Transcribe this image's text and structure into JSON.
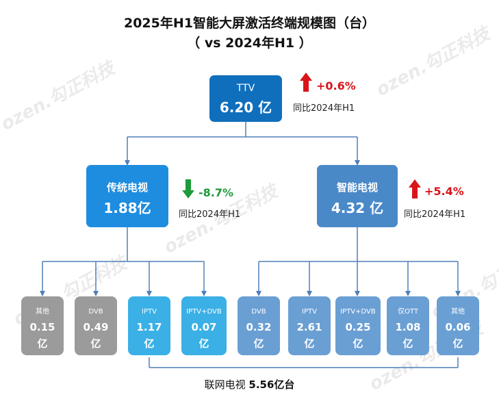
{
  "title_line1": "2025年H1智能大屏激活终端规模图（台）",
  "title_line2": "（ vs 2024年H1 ）",
  "root": {
    "name": "TTV",
    "value": "6.20 亿",
    "growth": "+0.6%",
    "compare": "同比2024年H1"
  },
  "traditional": {
    "name": "传统电视",
    "value": "1.88亿",
    "growth": "-8.7%",
    "compare": "同比2024年H1"
  },
  "smart": {
    "name": "智能电视",
    "value": "4.32 亿",
    "growth": "+5.4%",
    "compare": "同比2024年H1"
  },
  "leaves": [
    {
      "name": "其他",
      "value": "0.15",
      "unit": "亿"
    },
    {
      "name": "DVB",
      "value": "0.49",
      "unit": "亿"
    },
    {
      "name": "IPTV",
      "value": "1.17",
      "unit": "亿"
    },
    {
      "name": "IPTV+DVB",
      "value": "0.07",
      "unit": "亿"
    },
    {
      "name": "DVB",
      "value": "0.32",
      "unit": "亿"
    },
    {
      "name": "IPTV",
      "value": "2.61",
      "unit": "亿"
    },
    {
      "name": "IPTV+DVB",
      "value": "0.25",
      "unit": "亿"
    },
    {
      "name": "仅OTT",
      "value": "1.08",
      "unit": "亿"
    },
    {
      "name": "其他",
      "value": "0.06",
      "unit": "亿"
    }
  ],
  "footer": {
    "label": "联网电视",
    "value": "5.56亿台"
  },
  "watermark": "ozen.勾正科技",
  "colors": {
    "root": "#0f6fbd",
    "traditional": "#1e8de0",
    "smart": "#4a89c8",
    "leaf_gray": "#9b9b9b",
    "leaf_cyan": "#3ab0e6",
    "leaf_blue": "#6a9fd4",
    "up": "#d9141a",
    "down": "#1f9a3c",
    "connector": "#4f7fb8"
  }
}
